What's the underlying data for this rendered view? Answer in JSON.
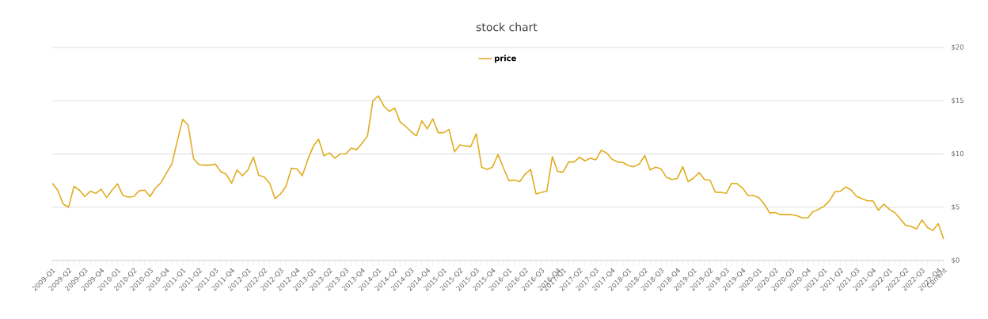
{
  "chart_data": {
    "type": "line",
    "title": "stock chart",
    "categories": [
      "2009-Q1",
      null,
      null,
      "2009-Q2",
      null,
      null,
      "2009-Q3",
      null,
      null,
      "2009-Q4",
      null,
      null,
      "2010-Q1",
      null,
      null,
      "2010-Q2",
      null,
      null,
      "2010-Q3",
      null,
      null,
      "2010-Q4",
      null,
      null,
      "2011-Q1",
      null,
      null,
      "2011-Q2",
      null,
      null,
      "2011-Q3",
      null,
      null,
      "2011-Q4",
      null,
      null,
      "2012-Q1",
      null,
      null,
      "2012-Q2",
      null,
      null,
      "2012-Q3",
      null,
      null,
      "2012-Q4",
      null,
      null,
      "2013-Q1",
      null,
      null,
      "2013-Q2",
      null,
      null,
      "2013-Q3",
      null,
      null,
      "2013-Q4",
      null,
      null,
      "2014-Q1",
      null,
      null,
      "2014-Q2",
      null,
      null,
      "2014-Q3",
      null,
      null,
      "2014-Q4",
      null,
      null,
      "2015-Q1",
      null,
      null,
      "2015-Q2",
      null,
      null,
      "2015-Q3",
      null,
      null,
      "2015-Q4",
      null,
      null,
      "2016-Q1",
      null,
      null,
      "2016-Q2",
      null,
      null,
      "2016-Q3",
      null,
      null,
      "2016-Q4",
      "2017-Q1",
      null,
      null,
      "2017-Q2",
      null,
      null,
      "2017-Q3",
      null,
      null,
      "2017-Q4",
      null,
      null,
      "2018-Q1",
      null,
      null,
      "2018-Q2",
      null,
      null,
      "2018-Q3",
      null,
      null,
      "2018-Q4",
      null,
      null,
      "2019-Q1",
      null,
      null,
      "2019-Q2",
      null,
      null,
      "2019-Q3",
      null,
      null,
      "2019-Q4",
      null,
      null,
      "2020-Q1",
      null,
      null,
      "2020-Q2",
      null,
      null,
      "2020-Q3",
      null,
      null,
      "2020-Q4",
      null,
      null,
      "2021-Q1",
      null,
      null,
      "2021-Q2",
      null,
      null,
      "2021-Q3",
      null,
      null,
      "2021-Q4",
      null,
      null,
      "2022-Q1",
      null,
      null,
      "2022-Q2",
      null,
      null,
      "2022-Q3",
      null,
      null,
      "2022-Q4",
      "Current"
    ],
    "series": [
      {
        "name": "price",
        "color": "#e0ac20",
        "values": [
          7.25,
          6.6,
          5.3,
          5.0,
          6.95,
          6.6,
          6.0,
          6.5,
          6.3,
          6.7,
          5.9,
          6.6,
          7.2,
          6.1,
          5.95,
          6.0,
          6.55,
          6.6,
          6.0,
          6.8,
          7.3,
          8.2,
          9.05,
          11.2,
          13.25,
          12.7,
          9.55,
          9.0,
          8.95,
          8.95,
          9.05,
          8.35,
          8.1,
          7.25,
          8.5,
          7.95,
          8.5,
          9.7,
          8.0,
          7.85,
          7.25,
          5.8,
          6.25,
          6.95,
          8.65,
          8.6,
          7.95,
          9.45,
          10.7,
          11.4,
          9.8,
          10.1,
          9.6,
          10.0,
          10.0,
          10.55,
          10.4,
          11.0,
          11.7,
          15.0,
          15.45,
          14.5,
          14.0,
          14.3,
          13.0,
          12.6,
          12.1,
          11.7,
          13.1,
          12.35,
          13.3,
          12.0,
          12.0,
          12.3,
          10.2,
          10.85,
          10.75,
          10.7,
          11.9,
          8.75,
          8.55,
          8.75,
          9.95,
          8.7,
          7.5,
          7.55,
          7.4,
          8.1,
          8.55,
          6.25,
          6.4,
          6.5,
          9.75,
          8.35,
          8.3,
          9.25,
          9.25,
          9.7,
          9.35,
          9.6,
          9.45,
          10.35,
          10.1,
          9.5,
          9.25,
          9.2,
          8.9,
          8.8,
          9.05,
          9.85,
          8.5,
          8.75,
          8.6,
          7.8,
          7.6,
          7.7,
          8.8,
          7.4,
          7.75,
          8.25,
          7.6,
          7.55,
          6.4,
          6.4,
          6.3,
          7.25,
          7.2,
          6.8,
          6.1,
          6.1,
          5.9,
          5.3,
          4.45,
          4.5,
          4.3,
          4.3,
          4.3,
          4.2,
          4.0,
          4.0,
          4.6,
          4.8,
          5.1,
          5.6,
          6.45,
          6.5,
          6.9,
          6.6,
          6.0,
          5.8,
          5.6,
          5.6,
          4.7,
          5.3,
          4.8,
          4.5,
          3.9,
          3.3,
          3.2,
          2.95,
          3.8,
          3.1,
          2.8,
          3.45,
          2.0
        ]
      }
    ],
    "ylim": [
      0,
      20
    ],
    "yticks": [
      {
        "value": 0,
        "label": "$0"
      },
      {
        "value": 5,
        "label": "$5"
      },
      {
        "value": 10,
        "label": "$10"
      },
      {
        "value": 15,
        "label": "$15"
      },
      {
        "value": 20,
        "label": "$20"
      }
    ],
    "grid": "y",
    "legend": "top"
  }
}
